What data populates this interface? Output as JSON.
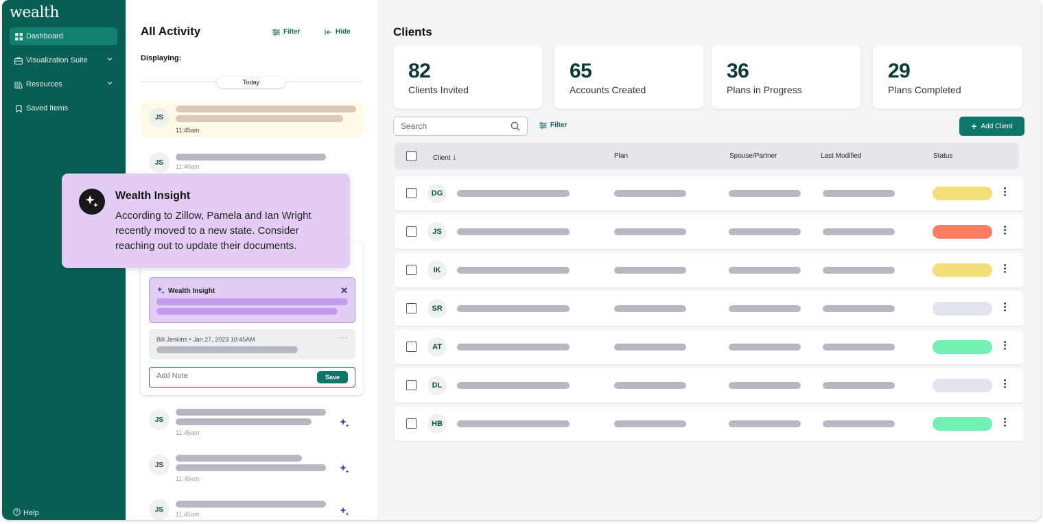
{
  "sidebar": {
    "logo": "wealth",
    "items": [
      {
        "label": "Dashboard",
        "icon": "dashboard-icon",
        "active": true
      },
      {
        "label": "Visualization Suite",
        "icon": "briefcase-icon",
        "has_chevron": true
      },
      {
        "label": "Resources",
        "icon": "library-icon",
        "has_chevron": true
      },
      {
        "label": "Saved Items",
        "icon": "bookmark-icon"
      }
    ],
    "help_label": "Help"
  },
  "activity": {
    "title": "All Activity",
    "filter_label": "Filter",
    "hide_label": "Hide",
    "displaying_label": "Displaying:",
    "today_label": "Today",
    "items": [
      {
        "initials": "JS",
        "time": "11:45am"
      },
      {
        "initials": "JS",
        "time": "11:40am"
      },
      {
        "initials": "JS",
        "time": "11:45am"
      },
      {
        "initials": "JS",
        "time": "11:45am"
      },
      {
        "initials": "JS",
        "time": "11:45am"
      }
    ],
    "card": {
      "insight_label": "Wealth Insight",
      "note_meta": "Bill Jenkins • Jan 27, 2023  10:45AM",
      "note_more": "···",
      "add_note_placeholder": "Add Note",
      "save_label": "Save"
    }
  },
  "popup": {
    "title": "Wealth Insight",
    "body": "According to Zillow, Pamela and Ian Wright recently moved to a new state.  Consider reaching out to update their documents."
  },
  "clients": {
    "title": "Clients",
    "stats": [
      {
        "value": "82",
        "label": "Clients Invited"
      },
      {
        "value": "65",
        "label": "Accounts Created"
      },
      {
        "value": "36",
        "label": "Plans in Progress"
      },
      {
        "value": "29",
        "label": "Plans Completed"
      }
    ],
    "search_placeholder": "Search",
    "filter_label": "Filter",
    "add_client_label": "Add Client",
    "columns": {
      "client": "Client",
      "plan": "Plan",
      "spouse": "Spouse/Partner",
      "modified": "Last Modified",
      "status": "Status"
    },
    "rows": [
      {
        "initials": "DG",
        "status_color": "#f3df7a"
      },
      {
        "initials": "JS",
        "status_color": "#fb7d63"
      },
      {
        "initials": "IK",
        "status_color": "#f3df7a"
      },
      {
        "initials": "SR",
        "status_color": "#e1e5eb"
      },
      {
        "initials": "AT",
        "status_color": "#72f0b5"
      },
      {
        "initials": "DL",
        "status_color": "#e1e5eb"
      },
      {
        "initials": "HB",
        "status_color": "#72f0b5"
      }
    ]
  },
  "colors": {
    "sidebar": "#075e55",
    "accent": "#0e7668",
    "insight": "#e3cdf5"
  }
}
